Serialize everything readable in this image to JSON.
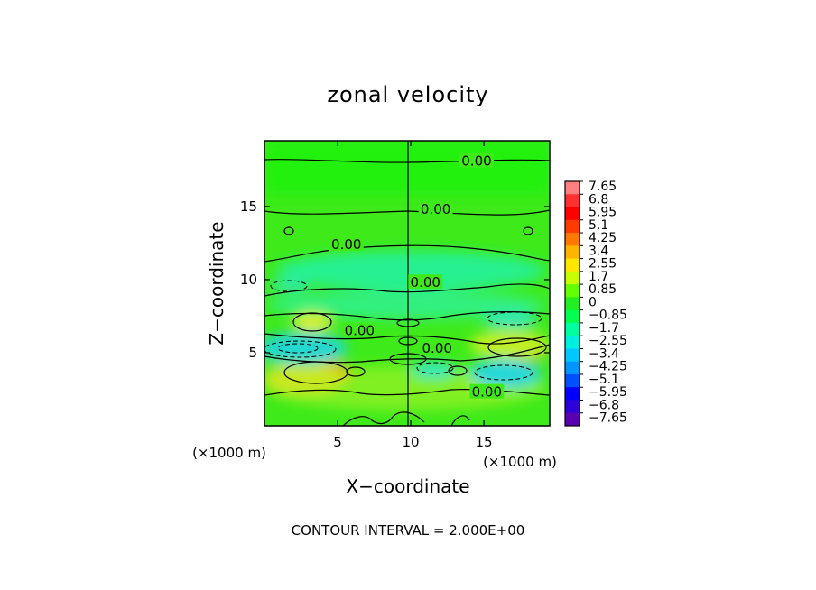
{
  "chart_data": {
    "type": "heatmap",
    "title": "zonal velocity",
    "xlabel": "X−coordinate",
    "ylabel": "Z−coordinate",
    "x_unit": "(×1000 m)",
    "y_unit": "(×1000 m)",
    "xlim": [
      0,
      19.5
    ],
    "ylim": [
      0,
      19.5
    ],
    "x_ticks": [
      5,
      10,
      15
    ],
    "y_ticks": [
      5,
      10,
      15
    ],
    "colorbar_labels": [
      "7.65",
      "6.8",
      "5.95",
      "5.1",
      "4.25",
      "3.4",
      "2.55",
      "1.7",
      "0.85",
      "0",
      "−0.85",
      "−1.7",
      "−2.55",
      "−3.4",
      "−4.25",
      "−5.1",
      "−5.95",
      "−6.8",
      "−7.65"
    ],
    "colorbar_colors": [
      "#ff8080",
      "#ff3030",
      "#ff0000",
      "#ff3c00",
      "#ff7800",
      "#ffb400",
      "#ffe600",
      "#c8ff00",
      "#64ff00",
      "#22ee22",
      "#00ff50",
      "#00ffa0",
      "#00f0e0",
      "#00c8ff",
      "#0096ff",
      "#0050ff",
      "#0000ff",
      "#3000d8",
      "#5a00b0"
    ],
    "contour_labels": [
      {
        "text": "0.00",
        "x": 14.5,
        "z": 18.1
      },
      {
        "text": "0.00",
        "x": 11.7,
        "z": 14.8
      },
      {
        "text": "0.00",
        "x": 5.6,
        "z": 12.4
      },
      {
        "text": "0.00",
        "x": 11.0,
        "z": 9.8
      },
      {
        "text": "0.00",
        "x": 6.5,
        "z": 6.5
      },
      {
        "text": "0.00",
        "x": 11.8,
        "z": 5.3
      },
      {
        "text": "0.00",
        "x": 15.2,
        "z": 2.3
      }
    ],
    "contour_interval": "CONTOUR INTERVAL = 2.000E+00"
  }
}
